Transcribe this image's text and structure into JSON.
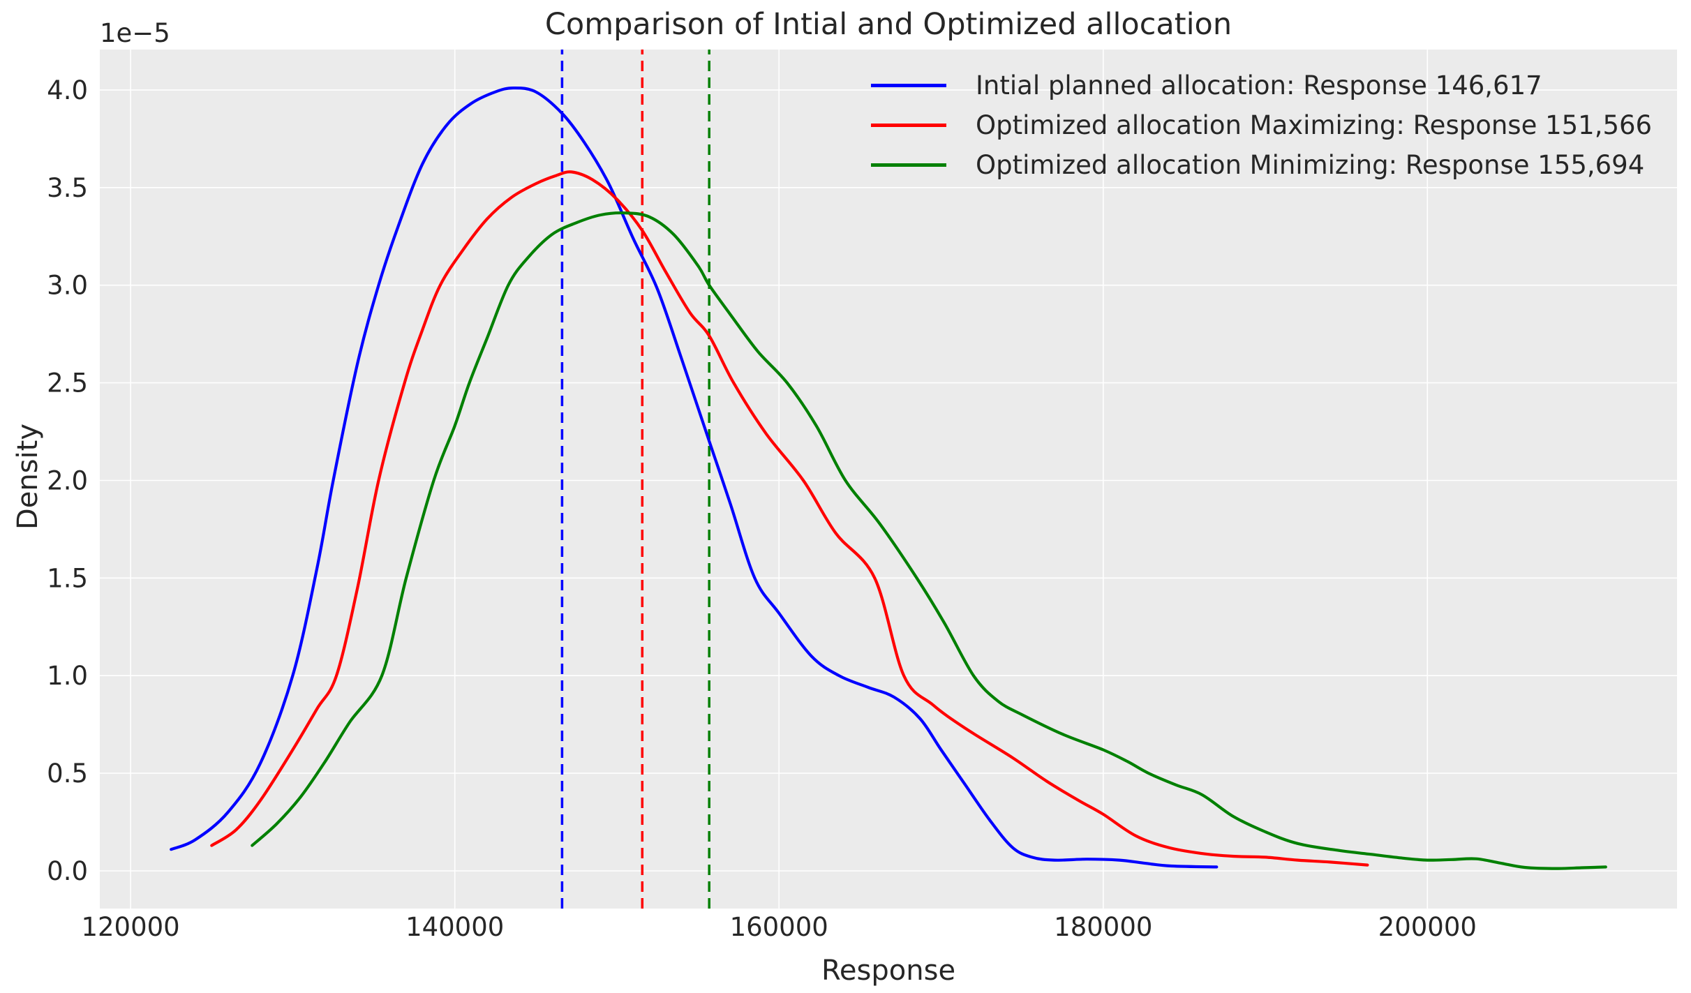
{
  "figure": {
    "title": "Comparison of Intial and Optimized allocation",
    "xlabel": "Response",
    "ylabel": "Density",
    "offset_text": "1e−5",
    "background_color": "#ffffff",
    "axes_background_color": "#ebebeb",
    "grid_color": "#ffffff",
    "text_color": "#262626"
  },
  "chart_data": {
    "type": "line",
    "title": "Comparison of Intial and Optimized allocation",
    "xlabel": "Response",
    "ylabel": "Density",
    "y_unit_multiplier": "1e-5",
    "grid": true,
    "legend_position": "upper right",
    "xlim": [
      118100,
      215400
    ],
    "ylim_1e5": [
      -0.193,
      4.207
    ],
    "x_ticks": [
      120000,
      140000,
      160000,
      180000,
      200000
    ],
    "x_tick_labels": [
      "120000",
      "140000",
      "160000",
      "180000",
      "200000"
    ],
    "y_ticks_1e5": [
      0.0,
      0.5,
      1.0,
      1.5,
      2.0,
      2.5,
      3.0,
      3.5,
      4.0
    ],
    "y_tick_labels": [
      "0.0",
      "0.5",
      "1.0",
      "1.5",
      "2.0",
      "2.5",
      "3.0",
      "3.5",
      "4.0"
    ],
    "series": [
      {
        "name": "Intial planned allocation: Response 146,617",
        "color": "#0000ff",
        "mean_response": 146617,
        "mean_line_style": "dashed",
        "points": [
          [
            122500,
            0.11
          ],
          [
            124000,
            0.16
          ],
          [
            126000,
            0.3
          ],
          [
            128000,
            0.55
          ],
          [
            130000,
            1.0
          ],
          [
            131500,
            1.55
          ],
          [
            132500,
            2.0
          ],
          [
            134000,
            2.6
          ],
          [
            135300,
            3.0
          ],
          [
            136500,
            3.3
          ],
          [
            138000,
            3.62
          ],
          [
            139500,
            3.82
          ],
          [
            141000,
            3.93
          ],
          [
            142500,
            3.99
          ],
          [
            143600,
            4.01
          ],
          [
            145000,
            3.99
          ],
          [
            146617,
            3.88
          ],
          [
            148000,
            3.73
          ],
          [
            149500,
            3.52
          ],
          [
            151000,
            3.24
          ],
          [
            152500,
            2.98
          ],
          [
            154000,
            2.62
          ],
          [
            155700,
            2.2
          ],
          [
            157000,
            1.88
          ],
          [
            158500,
            1.5
          ],
          [
            160000,
            1.32
          ],
          [
            162000,
            1.1
          ],
          [
            163700,
            1.0
          ],
          [
            165500,
            0.94
          ],
          [
            167100,
            0.89
          ],
          [
            168700,
            0.78
          ],
          [
            170000,
            0.62
          ],
          [
            171500,
            0.44
          ],
          [
            173000,
            0.26
          ],
          [
            174400,
            0.12
          ],
          [
            175600,
            0.07
          ],
          [
            177000,
            0.055
          ],
          [
            179000,
            0.06
          ],
          [
            181000,
            0.055
          ],
          [
            182500,
            0.04
          ],
          [
            184200,
            0.025
          ],
          [
            187000,
            0.02
          ]
        ]
      },
      {
        "name": "Optimized allocation Maximizing: Response 151,566",
        "color": "#ff0000",
        "mean_response": 151566,
        "mean_line_style": "dashed",
        "points": [
          [
            125000,
            0.13
          ],
          [
            126500,
            0.21
          ],
          [
            128000,
            0.36
          ],
          [
            130000,
            0.62
          ],
          [
            131500,
            0.83
          ],
          [
            132700,
            1.0
          ],
          [
            134000,
            1.45
          ],
          [
            135300,
            2.0
          ],
          [
            136900,
            2.5
          ],
          [
            138000,
            2.77
          ],
          [
            139100,
            3.0
          ],
          [
            140500,
            3.18
          ],
          [
            142000,
            3.34
          ],
          [
            143500,
            3.45
          ],
          [
            145000,
            3.52
          ],
          [
            146200,
            3.56
          ],
          [
            147200,
            3.58
          ],
          [
            148500,
            3.54
          ],
          [
            150000,
            3.44
          ],
          [
            151566,
            3.28
          ],
          [
            153000,
            3.07
          ],
          [
            154500,
            2.86
          ],
          [
            155700,
            2.74
          ],
          [
            157200,
            2.5
          ],
          [
            159200,
            2.24
          ],
          [
            161500,
            2.0
          ],
          [
            163500,
            1.73
          ],
          [
            165900,
            1.5
          ],
          [
            167700,
            1.0
          ],
          [
            169500,
            0.85
          ],
          [
            171500,
            0.73
          ],
          [
            174400,
            0.58
          ],
          [
            176500,
            0.46
          ],
          [
            178500,
            0.36
          ],
          [
            180000,
            0.29
          ],
          [
            182000,
            0.18
          ],
          [
            184000,
            0.12
          ],
          [
            186000,
            0.09
          ],
          [
            188000,
            0.075
          ],
          [
            190000,
            0.07
          ],
          [
            192000,
            0.055
          ],
          [
            194000,
            0.045
          ],
          [
            196300,
            0.03
          ]
        ]
      },
      {
        "name": "Optimized allocation Minimizing: Response 155,694",
        "color": "#008000",
        "mean_response": 155694,
        "mean_line_style": "dashed",
        "points": [
          [
            127500,
            0.13
          ],
          [
            129000,
            0.24
          ],
          [
            130500,
            0.38
          ],
          [
            132000,
            0.56
          ],
          [
            133500,
            0.76
          ],
          [
            135500,
            1.0
          ],
          [
            137000,
            1.5
          ],
          [
            138700,
            2.0
          ],
          [
            140000,
            2.28
          ],
          [
            140900,
            2.5
          ],
          [
            142000,
            2.73
          ],
          [
            143300,
            3.0
          ],
          [
            144500,
            3.14
          ],
          [
            146000,
            3.26
          ],
          [
            147500,
            3.32
          ],
          [
            149000,
            3.36
          ],
          [
            150500,
            3.37
          ],
          [
            152000,
            3.35
          ],
          [
            153500,
            3.26
          ],
          [
            155000,
            3.1
          ],
          [
            155694,
            3.0
          ],
          [
            157000,
            2.85
          ],
          [
            158700,
            2.66
          ],
          [
            160500,
            2.5
          ],
          [
            162300,
            2.28
          ],
          [
            164100,
            2.0
          ],
          [
            166200,
            1.78
          ],
          [
            168500,
            1.5
          ],
          [
            170200,
            1.27
          ],
          [
            172000,
            1.0
          ],
          [
            173500,
            0.87
          ],
          [
            175000,
            0.8
          ],
          [
            177500,
            0.7
          ],
          [
            180000,
            0.62
          ],
          [
            181500,
            0.56
          ],
          [
            182800,
            0.5
          ],
          [
            184500,
            0.44
          ],
          [
            186100,
            0.39
          ],
          [
            188000,
            0.28
          ],
          [
            190000,
            0.2
          ],
          [
            192000,
            0.14
          ],
          [
            194500,
            0.105
          ],
          [
            196500,
            0.085
          ],
          [
            198500,
            0.065
          ],
          [
            200000,
            0.055
          ],
          [
            201500,
            0.058
          ],
          [
            203000,
            0.062
          ],
          [
            204500,
            0.04
          ],
          [
            206000,
            0.018
          ],
          [
            208000,
            0.012
          ],
          [
            209500,
            0.016
          ],
          [
            211000,
            0.02
          ]
        ]
      }
    ]
  }
}
